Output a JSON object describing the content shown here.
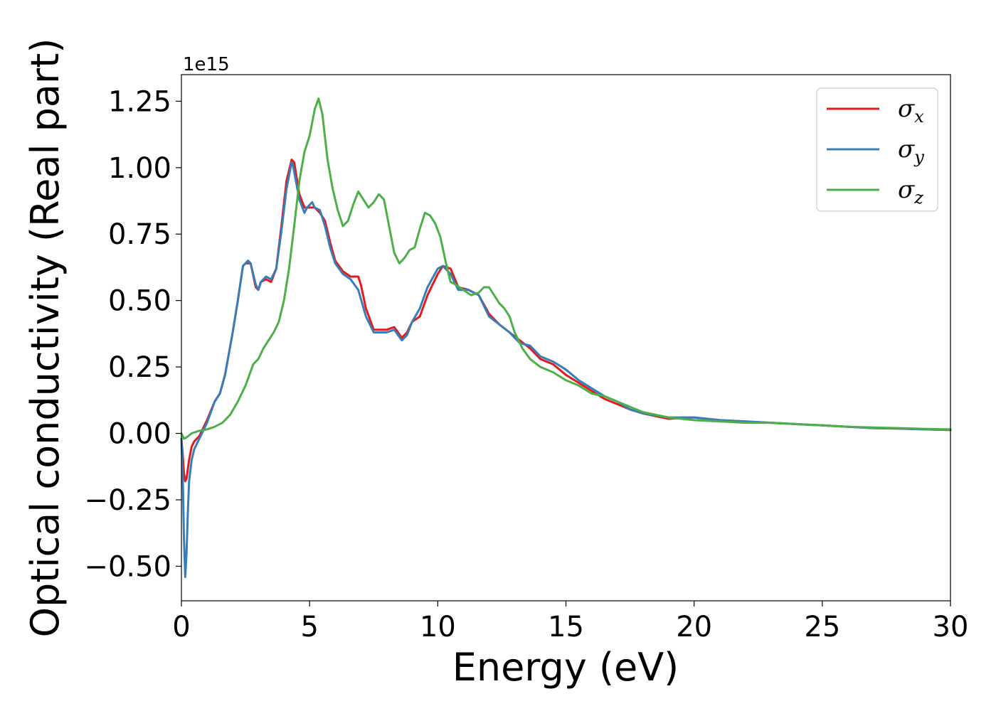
{
  "chart_data": {
    "type": "line",
    "xlabel": "Energy (eV)",
    "ylabel": "Optical conductivity (Real part)",
    "y_offset_text": "1e15",
    "xlim": [
      0,
      30
    ],
    "ylim": [
      -0.63,
      1.35
    ],
    "x_ticks": [
      0,
      5,
      10,
      15,
      20,
      25,
      30
    ],
    "x_tick_labels": [
      "0",
      "5",
      "10",
      "15",
      "20",
      "25",
      "30"
    ],
    "y_ticks": [
      -0.5,
      -0.25,
      0.0,
      0.25,
      0.5,
      0.75,
      1.0,
      1.25
    ],
    "y_tick_labels": [
      "−0.50",
      "−0.25",
      "0.00",
      "0.25",
      "0.50",
      "0.75",
      "1.00",
      "1.25"
    ],
    "grid": false,
    "legend_position": "top-right",
    "series": [
      {
        "name": "σ",
        "subscript": "x",
        "color": "#e41a1c",
        "x": [
          0,
          0.05,
          0.1,
          0.15,
          0.2,
          0.3,
          0.4,
          0.5,
          0.7,
          1.0,
          1.3,
          1.5,
          1.7,
          2.0,
          2.2,
          2.4,
          2.5,
          2.7,
          2.9,
          3.0,
          3.1,
          3.3,
          3.5,
          3.7,
          3.9,
          4.1,
          4.3,
          4.4,
          4.6,
          4.8,
          5.0,
          5.2,
          5.4,
          5.6,
          5.8,
          6.0,
          6.3,
          6.6,
          6.9,
          7.0,
          7.2,
          7.5,
          7.8,
          8.0,
          8.3,
          8.6,
          8.8,
          9.0,
          9.3,
          9.6,
          10.0,
          10.2,
          10.5,
          10.8,
          11.2,
          11.6,
          12.0,
          12.4,
          12.8,
          13.2,
          13.6,
          14.0,
          14.5,
          15.0,
          15.5,
          16.0,
          16.5,
          17.0,
          17.5,
          18.0,
          19.0,
          20.0,
          21.0,
          22.0,
          23.0,
          24.0,
          25.0,
          26.0,
          27.0,
          28.0,
          29.0,
          30.0
        ],
        "y": [
          -0.02,
          -0.08,
          -0.15,
          -0.18,
          -0.17,
          -0.1,
          -0.05,
          -0.03,
          -0.01,
          0.05,
          0.12,
          0.15,
          0.22,
          0.38,
          0.5,
          0.63,
          0.64,
          0.64,
          0.55,
          0.54,
          0.57,
          0.58,
          0.57,
          0.62,
          0.78,
          0.95,
          1.03,
          1.02,
          0.9,
          0.85,
          0.85,
          0.85,
          0.83,
          0.8,
          0.72,
          0.65,
          0.61,
          0.59,
          0.59,
          0.56,
          0.47,
          0.39,
          0.39,
          0.39,
          0.4,
          0.36,
          0.38,
          0.42,
          0.44,
          0.52,
          0.6,
          0.63,
          0.62,
          0.55,
          0.54,
          0.52,
          0.45,
          0.41,
          0.38,
          0.35,
          0.32,
          0.28,
          0.26,
          0.22,
          0.19,
          0.16,
          0.13,
          0.11,
          0.09,
          0.075,
          0.055,
          0.06,
          0.05,
          0.045,
          0.04,
          0.035,
          0.03,
          0.025,
          0.02,
          0.018,
          0.015,
          0.013
        ]
      },
      {
        "name": "σ",
        "subscript": "y",
        "color": "#377eb8",
        "x": [
          0,
          0.05,
          0.1,
          0.15,
          0.2,
          0.25,
          0.3,
          0.4,
          0.5,
          0.7,
          1.0,
          1.3,
          1.5,
          1.7,
          2.0,
          2.2,
          2.4,
          2.6,
          2.7,
          2.9,
          3.0,
          3.1,
          3.3,
          3.5,
          3.7,
          3.9,
          4.1,
          4.3,
          4.35,
          4.6,
          4.8,
          4.9,
          5.1,
          5.2,
          5.4,
          5.6,
          5.8,
          6.0,
          6.3,
          6.6,
          6.9,
          7.2,
          7.5,
          7.8,
          8.0,
          8.3,
          8.6,
          8.8,
          9.0,
          9.3,
          9.6,
          10.0,
          10.2,
          10.5,
          10.8,
          11.2,
          11.6,
          12.0,
          12.4,
          12.8,
          13.2,
          13.6,
          14.0,
          14.5,
          15.0,
          15.5,
          16.0,
          16.5,
          17.0,
          17.5,
          18.0,
          19.0,
          20.0,
          21.0,
          22.0,
          23.0,
          24.0,
          25.0,
          26.0,
          27.0,
          28.0,
          29.0,
          30.0
        ],
        "y": [
          -0.02,
          -0.15,
          -0.4,
          -0.54,
          -0.45,
          -0.3,
          -0.18,
          -0.1,
          -0.06,
          -0.02,
          0.04,
          0.12,
          0.15,
          0.22,
          0.38,
          0.5,
          0.63,
          0.65,
          0.64,
          0.56,
          0.54,
          0.57,
          0.59,
          0.58,
          0.62,
          0.76,
          0.92,
          1.02,
          1.01,
          0.88,
          0.83,
          0.85,
          0.87,
          0.85,
          0.84,
          0.78,
          0.7,
          0.64,
          0.6,
          0.58,
          0.54,
          0.44,
          0.38,
          0.38,
          0.38,
          0.39,
          0.35,
          0.37,
          0.42,
          0.47,
          0.55,
          0.62,
          0.63,
          0.6,
          0.54,
          0.54,
          0.52,
          0.44,
          0.41,
          0.38,
          0.34,
          0.33,
          0.29,
          0.27,
          0.24,
          0.2,
          0.17,
          0.14,
          0.12,
          0.09,
          0.075,
          0.06,
          0.06,
          0.05,
          0.045,
          0.04,
          0.035,
          0.03,
          0.025,
          0.02,
          0.018,
          0.015,
          0.013
        ]
      },
      {
        "name": "σ",
        "subscript": "z",
        "color": "#4daf4a",
        "x": [
          0,
          0.1,
          0.2,
          0.4,
          0.7,
          1.0,
          1.3,
          1.6,
          1.9,
          2.2,
          2.5,
          2.8,
          3.0,
          3.2,
          3.4,
          3.6,
          3.8,
          4.0,
          4.2,
          4.4,
          4.6,
          4.8,
          5.0,
          5.2,
          5.35,
          5.5,
          5.7,
          5.9,
          6.1,
          6.3,
          6.5,
          6.7,
          6.9,
          7.1,
          7.3,
          7.5,
          7.7,
          7.9,
          8.1,
          8.3,
          8.5,
          8.7,
          8.9,
          9.1,
          9.3,
          9.5,
          9.7,
          9.9,
          10.1,
          10.3,
          10.5,
          10.7,
          11.0,
          11.3,
          11.6,
          11.8,
          12.0,
          12.2,
          12.4,
          12.6,
          12.8,
          13.0,
          13.3,
          13.6,
          14.0,
          14.5,
          15.0,
          15.5,
          16.0,
          16.5,
          17.0,
          17.5,
          18.0,
          18.5,
          19.0,
          20.0,
          21.0,
          22.0,
          23.0,
          24.0,
          25.0,
          26.0,
          27.0,
          28.0,
          29.0,
          30.0
        ],
        "y": [
          0.0,
          -0.02,
          -0.015,
          0.0,
          0.01,
          0.015,
          0.025,
          0.04,
          0.07,
          0.12,
          0.18,
          0.26,
          0.28,
          0.32,
          0.35,
          0.38,
          0.42,
          0.5,
          0.62,
          0.78,
          0.95,
          1.06,
          1.12,
          1.22,
          1.26,
          1.2,
          1.03,
          0.92,
          0.84,
          0.78,
          0.8,
          0.86,
          0.91,
          0.88,
          0.85,
          0.87,
          0.9,
          0.88,
          0.78,
          0.68,
          0.64,
          0.66,
          0.69,
          0.7,
          0.77,
          0.83,
          0.82,
          0.79,
          0.74,
          0.65,
          0.57,
          0.56,
          0.54,
          0.52,
          0.53,
          0.55,
          0.55,
          0.52,
          0.49,
          0.47,
          0.44,
          0.38,
          0.32,
          0.28,
          0.25,
          0.23,
          0.2,
          0.18,
          0.15,
          0.14,
          0.12,
          0.1,
          0.08,
          0.07,
          0.06,
          0.05,
          0.045,
          0.04,
          0.04,
          0.035,
          0.03,
          0.025,
          0.022,
          0.02,
          0.017,
          0.015
        ]
      }
    ]
  }
}
